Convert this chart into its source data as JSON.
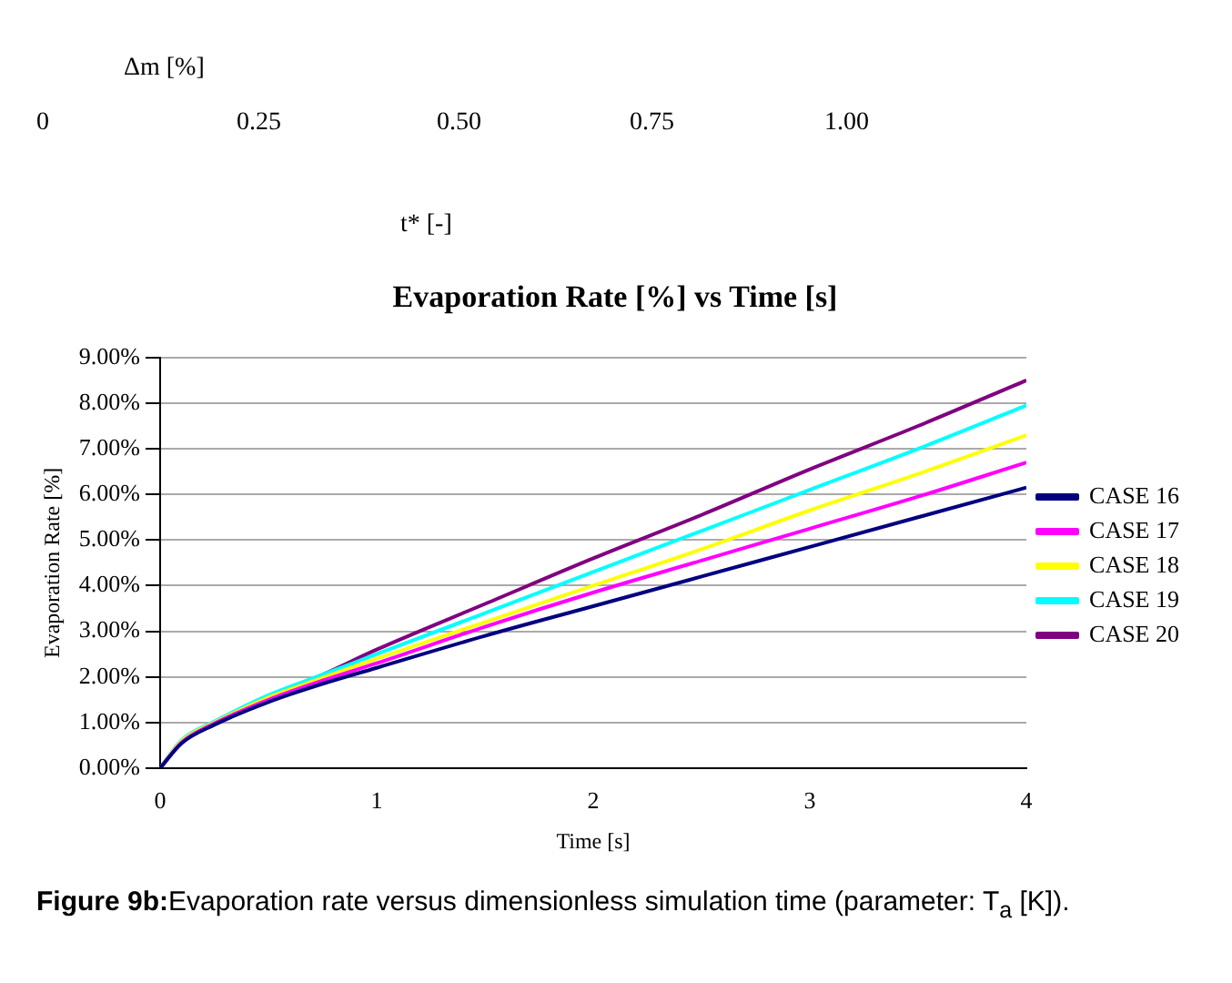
{
  "chart_data": {
    "type": "line",
    "title": "Evaporation Rate [%] vs Time [s]",
    "xlabel": "Time [s]",
    "ylabel": "Evaporation Rate [%]",
    "x": [
      0,
      0.1,
      0.25,
      0.5,
      0.75,
      1,
      1.5,
      2,
      2.5,
      3,
      3.5,
      4
    ],
    "series": [
      {
        "name": "CASE 16",
        "color": "#000080",
        "values": [
          0,
          0.55,
          0.95,
          1.45,
          1.85,
          2.2,
          2.9,
          3.55,
          4.2,
          4.85,
          5.5,
          6.15
        ]
      },
      {
        "name": "CASE 17",
        "color": "#ff00ff",
        "values": [
          0,
          0.57,
          0.98,
          1.5,
          1.92,
          2.3,
          3.1,
          3.85,
          4.55,
          5.25,
          5.95,
          6.7
        ]
      },
      {
        "name": "CASE 18",
        "color": "#ffff00",
        "values": [
          0,
          0.6,
          1.0,
          1.55,
          1.98,
          2.4,
          3.2,
          4.0,
          4.8,
          5.65,
          6.45,
          7.3
        ]
      },
      {
        "name": "CASE 19",
        "color": "#00ffff",
        "values": [
          0,
          0.62,
          1.02,
          1.6,
          2.05,
          2.5,
          3.4,
          4.3,
          5.2,
          6.1,
          7.0,
          7.95
        ]
      },
      {
        "name": "CASE 20",
        "color": "#800080",
        "values": [
          0,
          0.6,
          1.0,
          1.55,
          2.05,
          2.6,
          3.6,
          4.6,
          5.55,
          6.55,
          7.5,
          8.5
        ]
      }
    ],
    "xlim": [
      0,
      4
    ],
    "xticks": [
      0,
      1,
      2,
      3,
      4
    ],
    "ylim": [
      0,
      9
    ],
    "yticks": [
      {
        "value": 0,
        "label": "0.00%"
      },
      {
        "value": 1,
        "label": "1.00%"
      },
      {
        "value": 2,
        "label": "2.00%"
      },
      {
        "value": 3,
        "label": "3.00%"
      },
      {
        "value": 4,
        "label": "4.00%"
      },
      {
        "value": 5,
        "label": "5.00%"
      },
      {
        "value": 6,
        "label": "6.00%"
      },
      {
        "value": 7,
        "label": "7.00%"
      },
      {
        "value": 8,
        "label": "8.00%"
      },
      {
        "value": 9,
        "label": "9.00%"
      }
    ],
    "grid": "y",
    "legend": "right",
    "marker": "none",
    "line_style": "solid",
    "annotations": [
      "Δm [%]",
      "0",
      "0.25",
      "0.50",
      "0.75",
      "1.00",
      "t* [-]",
      "Figure 9b:",
      "Evaporation rate versus dimensionless simulation time (parameter: T$_{a}$ [K])."
    ]
  }
}
